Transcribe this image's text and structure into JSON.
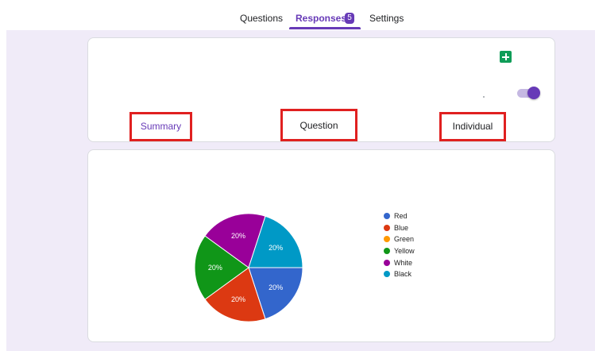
{
  "tabs": [
    {
      "label": "Questions",
      "active": false
    },
    {
      "label": "Responses",
      "active": true,
      "badge": "5"
    },
    {
      "label": "Settings",
      "active": false
    }
  ],
  "subtabs": [
    {
      "label": "Summary",
      "active": true
    },
    {
      "label": "Question",
      "active": false
    },
    {
      "label": "Individual",
      "active": false
    }
  ],
  "icons": {
    "sheets": "google-sheets-icon",
    "toggle": "accepting-responses-toggle"
  },
  "toggle": {
    "on": true
  },
  "colors": {
    "accent": "#673ab7",
    "page_background": "#f0ebf8",
    "highlight_border": "#e02020"
  },
  "chart_data": {
    "type": "pie",
    "labels": [
      "Red",
      "Blue",
      "Green",
      "Yellow",
      "White",
      "Black"
    ],
    "values": [
      20,
      20,
      0,
      20,
      20,
      20
    ],
    "value_labels": [
      "20%",
      "20%",
      "",
      "20%",
      "20%",
      "20%"
    ],
    "colors": [
      "#3366cc",
      "#dc3912",
      "#ff9900",
      "#109618",
      "#990099",
      "#0099c6"
    ],
    "legend_position": "right"
  }
}
